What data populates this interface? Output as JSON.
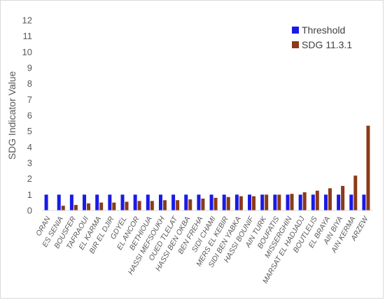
{
  "chart_data": {
    "type": "bar",
    "ylabel": "SDG Indicator Value",
    "xlabel": "",
    "ylim": [
      0,
      12
    ],
    "yticks": [
      0,
      1,
      2,
      3,
      4,
      5,
      6,
      7,
      8,
      9,
      10,
      11,
      12
    ],
    "grid": false,
    "legend_position": "top-right",
    "categories": [
      "ORAN",
      "ES SENIA",
      "BOUSFER",
      "TAFRAOUI",
      "EL KARMA",
      "BIR EL DJIR",
      "GDYEL",
      "EL ANCOR",
      "BETHIOUA",
      "HASSI MEFSOUKH",
      "OUED TLELAT",
      "HASSI BEN OKBA",
      "BEN FREHA",
      "SIDI CHAMI",
      "MERS EL KEBIR",
      "SIDI BEN YABKA",
      "HASSI BOUNIF",
      "AIN TURK",
      "BOUFATIS",
      "MISSERGHIN",
      "MARSAT EL HADJADJ",
      "BOUTLELIS",
      "EL BRAYA",
      "AIN BIYA",
      "AIN KERMA",
      "ARZEW"
    ],
    "series": [
      {
        "name": "Threshold",
        "color": "#1a1ae6",
        "values": [
          1,
          1,
          1,
          1,
          1,
          1,
          1,
          1,
          1,
          1,
          1,
          1,
          1,
          1,
          1,
          1,
          1,
          1,
          1,
          1,
          1,
          1,
          1,
          1,
          1,
          1
        ]
      },
      {
        "name": "SDG 11.3.1",
        "color": "#8b3a1a",
        "values": [
          null,
          0.3,
          0.35,
          0.45,
          0.5,
          0.5,
          0.55,
          0.6,
          0.6,
          0.65,
          0.65,
          0.7,
          0.75,
          0.8,
          0.85,
          0.9,
          0.9,
          1.0,
          1.0,
          1.05,
          1.15,
          1.25,
          1.4,
          1.55,
          2.2,
          5.35
        ]
      }
    ]
  }
}
